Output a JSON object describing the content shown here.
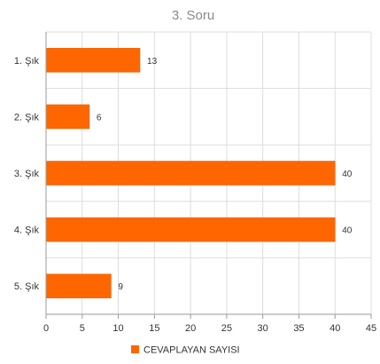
{
  "colors": {
    "bar": "#ff6600",
    "bar_stroke": "#e85c00",
    "grid": "#dddddd",
    "axis": "#999999"
  },
  "chart_data": {
    "type": "bar",
    "orientation": "horizontal",
    "title": "3. Soru",
    "categories": [
      "1. Şık",
      "2. Şık",
      "3. Şık",
      "4. Şık",
      "5. Şık"
    ],
    "series": [
      {
        "name": "CEVAPLAYAN SAYISI",
        "values": [
          13,
          6,
          40,
          40,
          9
        ]
      }
    ],
    "xlim": [
      0,
      45
    ],
    "xticks": [
      0,
      5,
      10,
      15,
      20,
      25,
      30,
      35,
      40,
      45
    ],
    "data_labels": true,
    "grid": true,
    "legend": "bottom-center"
  }
}
